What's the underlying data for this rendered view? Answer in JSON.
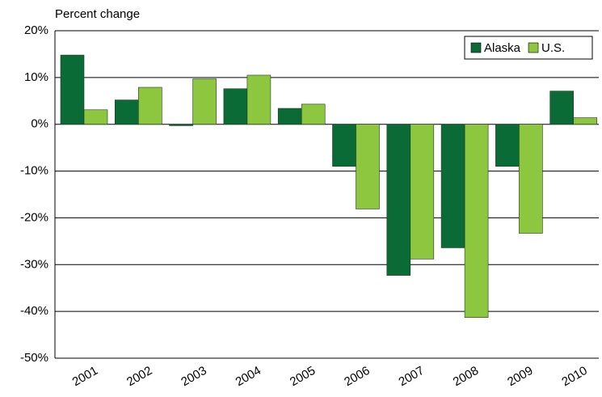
{
  "chart_data": {
    "type": "bar",
    "y_axis_label": "Percent change",
    "categories": [
      "2001",
      "2002",
      "2003",
      "2004",
      "2005",
      "2006",
      "2007",
      "2008",
      "2009",
      "2010"
    ],
    "series": [
      {
        "name": "Alaska",
        "color": "#0b6b36",
        "values": [
          14.8,
          5.2,
          -0.3,
          7.6,
          3.4,
          -9.0,
          -32.3,
          -26.4,
          -9.0,
          7.1
        ]
      },
      {
        "name": "U.S.",
        "color": "#8dc63f",
        "values": [
          3.1,
          7.9,
          9.7,
          10.5,
          4.3,
          -18.1,
          -28.8,
          -41.3,
          -23.3,
          1.4
        ]
      }
    ],
    "ylim": [
      -50,
      20
    ],
    "yticks": [
      {
        "value": -50,
        "label": "-50%"
      },
      {
        "value": -40,
        "label": "-40%"
      },
      {
        "value": -30,
        "label": "-30%"
      },
      {
        "value": -20,
        "label": "-20%"
      },
      {
        "value": -10,
        "label": "-10%"
      },
      {
        "value": 0,
        "label": "0%"
      },
      {
        "value": 10,
        "label": "10%"
      },
      {
        "value": 20,
        "label": "20%"
      }
    ],
    "grid": true,
    "legend": "top-right"
  }
}
